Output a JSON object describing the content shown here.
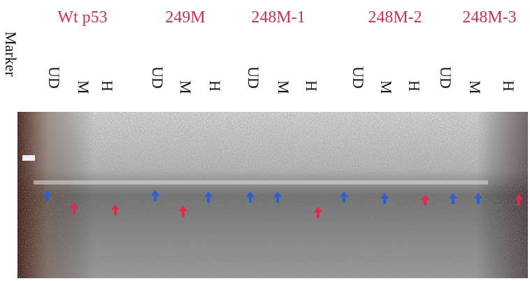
{
  "marker_label": "Marker",
  "groups": [
    {
      "name": "Wt p53",
      "lanes": [
        "UD",
        "M",
        "H"
      ]
    },
    {
      "name": "249M",
      "lanes": [
        "UD",
        "M",
        "H"
      ]
    },
    {
      "name": "248M-1",
      "lanes": [
        "UD",
        "M",
        "H"
      ]
    },
    {
      "name": "248M-2",
      "lanes": [
        "UD",
        "M",
        "H"
      ]
    },
    {
      "name": "248M-3",
      "lanes": [
        "UD",
        "M",
        "H"
      ]
    }
  ]
}
